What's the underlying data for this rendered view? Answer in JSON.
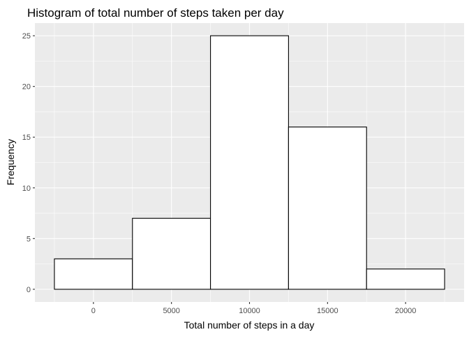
{
  "chart_data": {
    "type": "bar",
    "title": "Histogram of total number of steps taken per day",
    "xlabel": "Total number of steps in a day",
    "ylabel": "Frequency",
    "bins": [
      {
        "x_start": -2500,
        "x_end": 2500,
        "count": 3
      },
      {
        "x_start": 2500,
        "x_end": 7500,
        "count": 7
      },
      {
        "x_start": 7500,
        "x_end": 12500,
        "count": 25
      },
      {
        "x_start": 12500,
        "x_end": 17500,
        "count": 16
      },
      {
        "x_start": 17500,
        "x_end": 22500,
        "count": 2
      }
    ],
    "x_ticks": [
      0,
      5000,
      10000,
      15000,
      20000
    ],
    "y_ticks": [
      0,
      5,
      10,
      15,
      20,
      25
    ],
    "xlim": [
      -3750,
      23750
    ],
    "ylim": [
      -1.25,
      26.25
    ],
    "grid": true,
    "colors": {
      "panel_background": "#EBEBEB",
      "grid_major": "#FFFFFF",
      "bar_fill": "#FFFFFF",
      "bar_stroke": "#000000",
      "axis_text": "#4D4D4D",
      "label_text": "#000000"
    }
  }
}
